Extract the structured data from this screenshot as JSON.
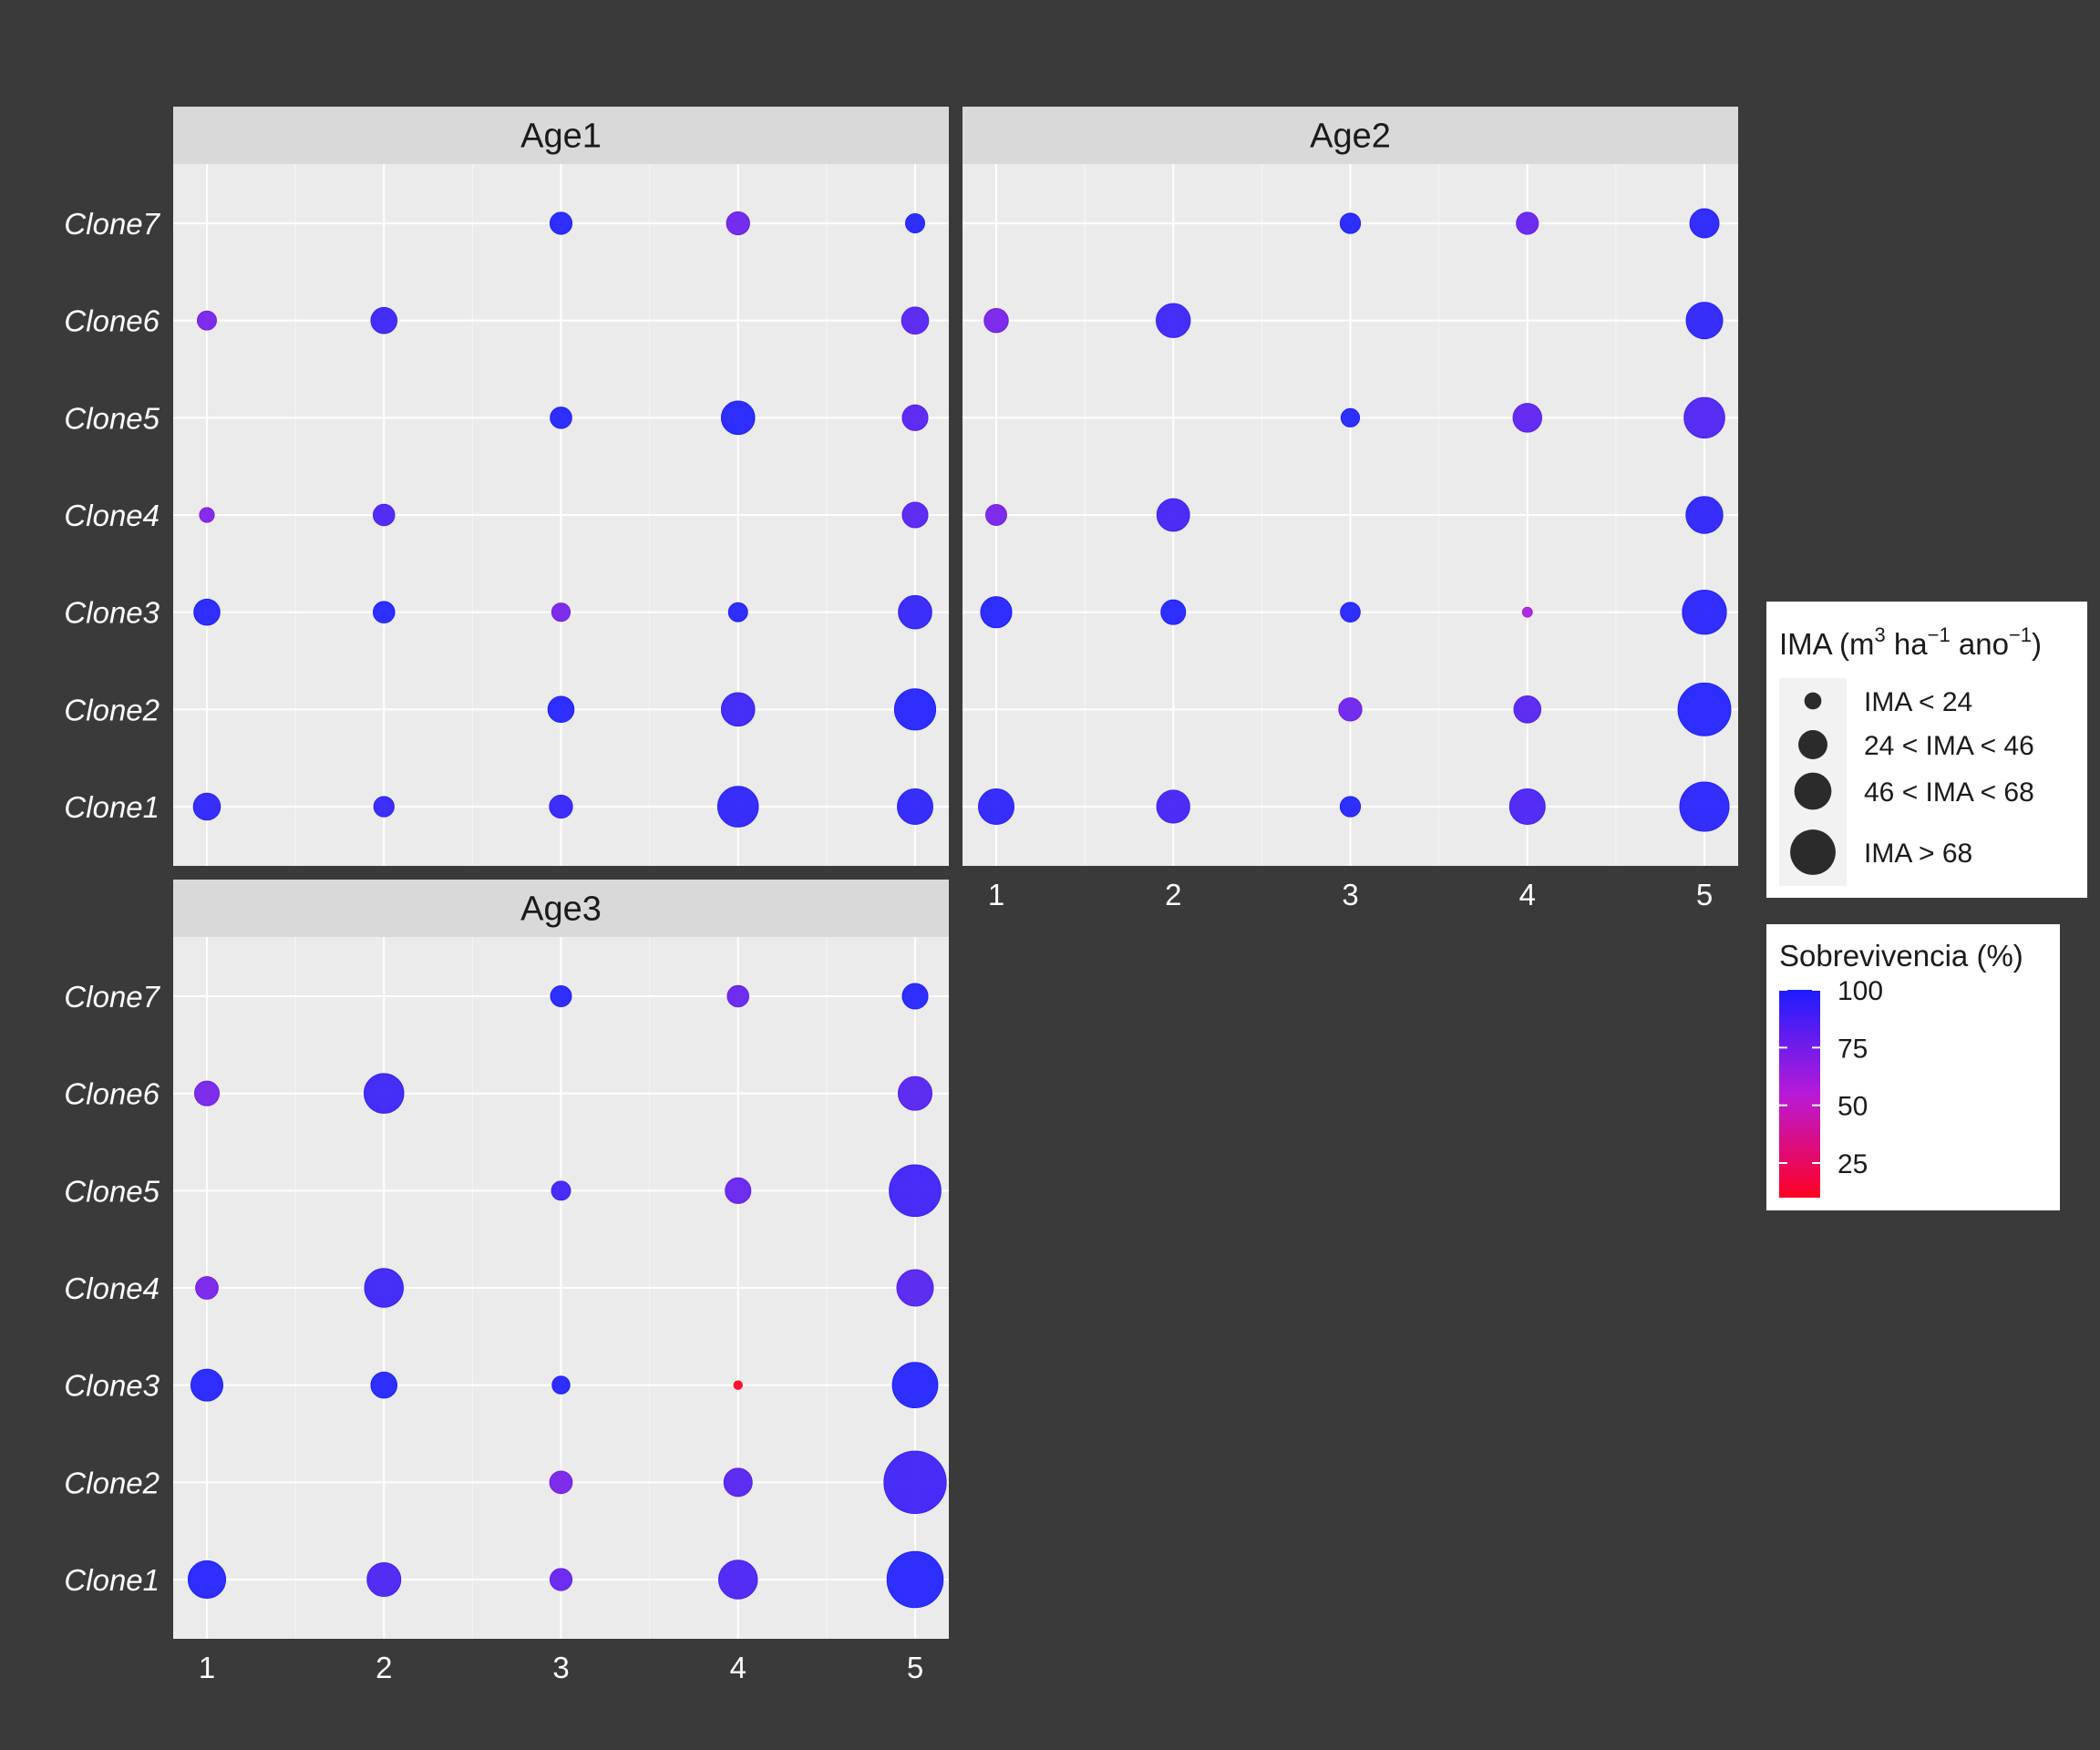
{
  "chart_data": {
    "type": "scatter",
    "title": "",
    "xlabel": "",
    "ylabel": "",
    "x_ticks": [
      "1",
      "2",
      "3",
      "4",
      "5"
    ],
    "y_categories": [
      "Clone1",
      "Clone2",
      "Clone3",
      "Clone4",
      "Clone5",
      "Clone6",
      "Clone7"
    ],
    "panels": [
      {
        "name": "Age1",
        "points": [
          {
            "x": 3,
            "clone": "Clone7",
            "ima": 20,
            "sobrevivencia": 100
          },
          {
            "x": 4,
            "clone": "Clone7",
            "ima": 22,
            "sobrevivencia": 78
          },
          {
            "x": 5,
            "clone": "Clone7",
            "ima": 15,
            "sobrevivencia": 100
          },
          {
            "x": 1,
            "clone": "Clone6",
            "ima": 15,
            "sobrevivencia": 75
          },
          {
            "x": 2,
            "clone": "Clone6",
            "ima": 28,
            "sobrevivencia": 93
          },
          {
            "x": 5,
            "clone": "Clone6",
            "ima": 30,
            "sobrevivencia": 85
          },
          {
            "x": 3,
            "clone": "Clone5",
            "ima": 19,
            "sobrevivencia": 100
          },
          {
            "x": 4,
            "clone": "Clone5",
            "ima": 46,
            "sobrevivencia": 100
          },
          {
            "x": 5,
            "clone": "Clone5",
            "ima": 27,
            "sobrevivencia": 85
          },
          {
            "x": 1,
            "clone": "Clone4",
            "ima": 9,
            "sobrevivencia": 72
          },
          {
            "x": 2,
            "clone": "Clone4",
            "ima": 19,
            "sobrevivencia": 88
          },
          {
            "x": 5,
            "clone": "Clone4",
            "ima": 27,
            "sobrevivencia": 85
          },
          {
            "x": 1,
            "clone": "Clone3",
            "ima": 28,
            "sobrevivencia": 100
          },
          {
            "x": 2,
            "clone": "Clone3",
            "ima": 19,
            "sobrevivencia": 100
          },
          {
            "x": 3,
            "clone": "Clone3",
            "ima": 14,
            "sobrevivencia": 75
          },
          {
            "x": 4,
            "clone": "Clone3",
            "ima": 15,
            "sobrevivencia": 100
          },
          {
            "x": 5,
            "clone": "Clone3",
            "ima": 46,
            "sobrevivencia": 95
          },
          {
            "x": 3,
            "clone": "Clone2",
            "ima": 28,
            "sobrevivencia": 100
          },
          {
            "x": 4,
            "clone": "Clone2",
            "ima": 46,
            "sobrevivencia": 93
          },
          {
            "x": 5,
            "clone": "Clone2",
            "ima": 70,
            "sobrevivencia": 100
          },
          {
            "x": 1,
            "clone": "Clone1",
            "ima": 30,
            "sobrevivencia": 97
          },
          {
            "x": 2,
            "clone": "Clone1",
            "ima": 17,
            "sobrevivencia": 95
          },
          {
            "x": 3,
            "clone": "Clone1",
            "ima": 22,
            "sobrevivencia": 95
          },
          {
            "x": 4,
            "clone": "Clone1",
            "ima": 68,
            "sobrevivencia": 97
          },
          {
            "x": 5,
            "clone": "Clone1",
            "ima": 52,
            "sobrevivencia": 97
          }
        ]
      },
      {
        "name": "Age2",
        "points": [
          {
            "x": 3,
            "clone": "Clone7",
            "ima": 17,
            "sobrevivencia": 100
          },
          {
            "x": 4,
            "clone": "Clone7",
            "ima": 20,
            "sobrevivencia": 80
          },
          {
            "x": 5,
            "clone": "Clone7",
            "ima": 35,
            "sobrevivencia": 98
          },
          {
            "x": 1,
            "clone": "Clone6",
            "ima": 24,
            "sobrevivencia": 75
          },
          {
            "x": 2,
            "clone": "Clone6",
            "ima": 48,
            "sobrevivencia": 93
          },
          {
            "x": 5,
            "clone": "Clone6",
            "ima": 55,
            "sobrevivencia": 97
          },
          {
            "x": 3,
            "clone": "Clone5",
            "ima": 14,
            "sobrevivencia": 100
          },
          {
            "x": 4,
            "clone": "Clone5",
            "ima": 34,
            "sobrevivencia": 83
          },
          {
            "x": 5,
            "clone": "Clone5",
            "ima": 68,
            "sobrevivencia": 87
          },
          {
            "x": 1,
            "clone": "Clone4",
            "ima": 18,
            "sobrevivencia": 75
          },
          {
            "x": 2,
            "clone": "Clone4",
            "ima": 44,
            "sobrevivencia": 90
          },
          {
            "x": 5,
            "clone": "Clone4",
            "ima": 56,
            "sobrevivencia": 97
          },
          {
            "x": 1,
            "clone": "Clone3",
            "ima": 40,
            "sobrevivencia": 100
          },
          {
            "x": 2,
            "clone": "Clone3",
            "ima": 25,
            "sobrevivencia": 100
          },
          {
            "x": 3,
            "clone": "Clone3",
            "ima": 16,
            "sobrevivencia": 100
          },
          {
            "x": 4,
            "clone": "Clone3",
            "ima": 4,
            "sobrevivencia": 60
          },
          {
            "x": 5,
            "clone": "Clone3",
            "ima": 80,
            "sobrevivencia": 98
          },
          {
            "x": 3,
            "clone": "Clone2",
            "ima": 22,
            "sobrevivencia": 78
          },
          {
            "x": 4,
            "clone": "Clone2",
            "ima": 30,
            "sobrevivencia": 85
          },
          {
            "x": 5,
            "clone": "Clone2",
            "ima": 115,
            "sobrevivencia": 100
          },
          {
            "x": 1,
            "clone": "Clone1",
            "ima": 52,
            "sobrevivencia": 97
          },
          {
            "x": 2,
            "clone": "Clone1",
            "ima": 45,
            "sobrevivencia": 90
          },
          {
            "x": 3,
            "clone": "Clone1",
            "ima": 17,
            "sobrevivencia": 100
          },
          {
            "x": 4,
            "clone": "Clone1",
            "ima": 52,
            "sobrevivencia": 88
          },
          {
            "x": 5,
            "clone": "Clone1",
            "ima": 100,
            "sobrevivencia": 98
          }
        ]
      },
      {
        "name": "Age3",
        "points": [
          {
            "x": 3,
            "clone": "Clone7",
            "ima": 18,
            "sobrevivencia": 100
          },
          {
            "x": 4,
            "clone": "Clone7",
            "ima": 19,
            "sobrevivencia": 80
          },
          {
            "x": 5,
            "clone": "Clone7",
            "ima": 27,
            "sobrevivencia": 100
          },
          {
            "x": 1,
            "clone": "Clone6",
            "ima": 25,
            "sobrevivencia": 75
          },
          {
            "x": 2,
            "clone": "Clone6",
            "ima": 65,
            "sobrevivencia": 93
          },
          {
            "x": 5,
            "clone": "Clone6",
            "ima": 47,
            "sobrevivencia": 85
          },
          {
            "x": 3,
            "clone": "Clone5",
            "ima": 15,
            "sobrevivencia": 92
          },
          {
            "x": 4,
            "clone": "Clone5",
            "ima": 27,
            "sobrevivencia": 80
          },
          {
            "x": 5,
            "clone": "Clone5",
            "ima": 110,
            "sobrevivencia": 92
          },
          {
            "x": 1,
            "clone": "Clone4",
            "ima": 21,
            "sobrevivencia": 75
          },
          {
            "x": 2,
            "clone": "Clone4",
            "ima": 62,
            "sobrevivencia": 93
          },
          {
            "x": 5,
            "clone": "Clone4",
            "ima": 55,
            "sobrevivencia": 85
          },
          {
            "x": 1,
            "clone": "Clone3",
            "ima": 42,
            "sobrevivencia": 100
          },
          {
            "x": 2,
            "clone": "Clone3",
            "ima": 28,
            "sobrevivencia": 100
          },
          {
            "x": 3,
            "clone": "Clone3",
            "ima": 13,
            "sobrevivencia": 100
          },
          {
            "x": 4,
            "clone": "Clone3",
            "ima": 3,
            "sobrevivencia": 10
          },
          {
            "x": 5,
            "clone": "Clone3",
            "ima": 85,
            "sobrevivencia": 100
          },
          {
            "x": 3,
            "clone": "Clone2",
            "ima": 21,
            "sobrevivencia": 75
          },
          {
            "x": 4,
            "clone": "Clone2",
            "ima": 33,
            "sobrevivencia": 85
          },
          {
            "x": 5,
            "clone": "Clone2",
            "ima": 160,
            "sobrevivencia": 92
          },
          {
            "x": 1,
            "clone": "Clone1",
            "ima": 58,
            "sobrevivencia": 100
          },
          {
            "x": 2,
            "clone": "Clone1",
            "ima": 47,
            "sobrevivencia": 88
          },
          {
            "x": 3,
            "clone": "Clone1",
            "ima": 20,
            "sobrevivencia": 80
          },
          {
            "x": 4,
            "clone": "Clone1",
            "ima": 62,
            "sobrevivencia": 88
          },
          {
            "x": 5,
            "clone": "Clone1",
            "ima": 130,
            "sobrevivencia": 100
          }
        ]
      }
    ],
    "legend_size": {
      "title_main": "IMA (m",
      "title_sup1": "3",
      "title_mid": " ha",
      "title_sup2": "−1",
      "title_mid2": " ano",
      "title_sup3": "−1",
      "title_end": ")",
      "entries": [
        {
          "label": "IMA < 24",
          "ima": 12
        },
        {
          "label": "24 < IMA < 46",
          "ima": 35
        },
        {
          "label": "46 < IMA < 68",
          "ima": 57
        },
        {
          "label": "IMA > 68",
          "ima": 85
        }
      ]
    },
    "legend_color": {
      "title": "Sobrevivencia (%)",
      "ticks": [
        "100",
        "75",
        "50",
        "25"
      ],
      "tick_values": [
        100,
        75,
        50,
        25
      ],
      "range": [
        10,
        100
      ],
      "low_color": "#ff0022",
      "mid_color": "#b81ad8",
      "high_color": "#1d1dff"
    },
    "legend_placement": "right",
    "colors": {
      "background": "#3a3a3a",
      "panel": "#ebebeb",
      "strip": "#d9d9d9",
      "grid": "#ffffff",
      "text_light": "#ffffff",
      "text_dark": "#1a1a1a",
      "legend_key": "#2b2b2b"
    },
    "grid": true
  }
}
